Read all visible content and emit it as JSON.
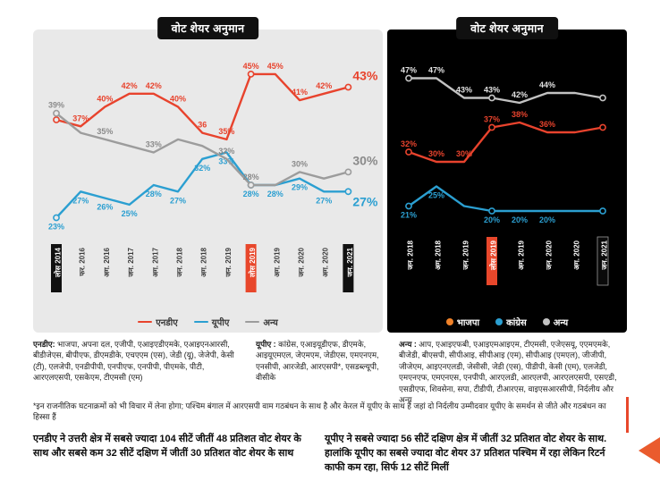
{
  "left_chart": {
    "title": "वोट शेयर अनुमान"
  },
  "right_chart": {
    "title": "वोट शेयर अनुमान"
  },
  "colors": {
    "nda_red": "#e8432d",
    "upa_blue": "#2b9fd1",
    "others_gray_light_panel": "#9c9c9c",
    "others_gray_dark_panel": "#c2c2c2",
    "bjp_legend_orange": "#f08229",
    "highlight_box_red": "#e8472b",
    "highlight_box_black": "#111111",
    "panel_left_bg": "#e9e9e9",
    "panel_right_bg": "#000000"
  },
  "chart_data": [
    {
      "type": "line",
      "title": "वोट शेयर अनुमान",
      "grid": false,
      "ylim": [
        18,
        50
      ],
      "unit": "%",
      "legend_position": "bottom",
      "categories": [
        "लोस 2014",
        "फर. 2016",
        "अग. 2016",
        "जन. 2017",
        "अग. 2017",
        "जन. 2018",
        "अग. 2018",
        "जन. 2019",
        "लोस 2019",
        "अग. 2019",
        "जन. 2020",
        "अग. 2020",
        "जन. 2021"
      ],
      "highlight_categories": {
        "boxed_black": [
          0,
          12
        ],
        "boxed_red": [
          8
        ]
      },
      "series": [
        {
          "name": "एनडीए",
          "color": "#e8432d",
          "values": [
            38,
            37,
            40,
            42,
            42,
            40,
            36,
            35,
            45,
            45,
            41,
            42,
            43
          ],
          "labels": [
            null,
            "37%",
            "40%",
            "42%",
            "42%",
            "40%",
            "36",
            "35%",
            "45%",
            "45%",
            "41%",
            "42%",
            "43%"
          ]
        },
        {
          "name": "यूपीए",
          "color": "#2b9fd1",
          "values": [
            23,
            27,
            26,
            25,
            28,
            27,
            32,
            33,
            28,
            28,
            29,
            27,
            27
          ],
          "labels": [
            "23%",
            "27%",
            "26%",
            "25%",
            "28%",
            "27%",
            "32%",
            "33%",
            "28%",
            "28%",
            "29%",
            "27%",
            "27%"
          ]
        },
        {
          "name": "अन्य",
          "color": "#9c9c9c",
          "label_color": "#8a8a8a",
          "values": [
            39,
            36,
            35,
            34,
            33,
            35,
            34,
            32,
            28,
            28,
            30,
            29,
            30
          ],
          "labels": [
            "39%",
            null,
            "35%",
            null,
            "33%",
            null,
            null,
            "32%",
            "28%",
            null,
            "30%",
            null,
            "30%"
          ]
        }
      ]
    },
    {
      "type": "line",
      "title": "वोट शेयर अनुमान",
      "grid": false,
      "ylim": [
        16,
        52
      ],
      "unit": "%",
      "legend_position": "bottom",
      "categories": [
        "जन. 2018",
        "अग. 2018",
        "जन. 2019",
        "लोस 2019",
        "अग. 2019",
        "जन. 2020",
        "अग. 2020",
        "जन. 2021"
      ],
      "highlight_categories": {
        "boxed_red": [
          3
        ],
        "boxed_black": [
          7
        ]
      },
      "series": [
        {
          "name": "भाजपा",
          "color": "#e8432d",
          "legend_color": "#f08229",
          "values": [
            32,
            30,
            30,
            37,
            38,
            36,
            36,
            37
          ],
          "labels": [
            "32%",
            "30%",
            "30%",
            "37%",
            "38%",
            "36%",
            null,
            null
          ]
        },
        {
          "name": "कांग्रेस",
          "color": "#2b9fd1",
          "values": [
            21,
            25,
            21,
            20,
            20,
            20,
            20,
            20
          ],
          "labels": [
            "21%",
            "25%",
            null,
            "20%",
            "20%",
            "20%",
            null,
            null
          ]
        },
        {
          "name": "अन्य",
          "color": "#c2c2c2",
          "label_color": "#e2e2e2",
          "values": [
            47,
            47,
            43,
            43,
            42,
            44,
            44,
            43
          ],
          "labels": [
            "47%",
            "47%",
            "43%",
            "43%",
            "42%",
            "44%",
            null,
            null
          ]
        }
      ]
    }
  ],
  "parties": {
    "nda": {
      "label": "एनडीए:",
      "list": "भाजपा, अपना दल, एजीपी, एआइएडीएमके, एआइएनआरसी, बीडीजेएस, बीपीएफ, डीएमडीके, एचएएम (एस), जेडी (यू), जेजेपी, केसी (टी), एलजेपी, एनडीपीपी, एनपीएफ, एनपीपी, पीएमके, पीटी, आरएलएसपी, एसकेएम, टीएमसी (एम)"
    },
    "upa": {
      "label": "यूपीए :",
      "list": "कांग्रेस, एआइयूडीएफ, डीएमके, आइयूएमएल, जेएमएम, जेडीएस, एमएनएम, एनसीपी, आरजेडी, आरएसपी*, एसडब्ल्यूपी, वीसीके"
    },
    "others": {
      "label": "अन्य :",
      "list": "आप, एआइएफबी, एआइएमआइएम, टीएमसी, एजेएसयू, एएमएमके, बीजेडी, बीएसपी, सीपीआइ, सीपीआइ (एम), सीपीआइ (एमएल), जीजीपी, जीजेएम, आइएनएलडी, जेसीसी, जेडी (एस), पीडीपी, केसी (एम), एलजेडी, एमएनएफ, एमएनएस, एनपीपी, आरएलडी, आरएलपी, आरएलएसपी, एसएडी, एसडीएफ, शिवसेना, सपा, टीडीपी, टीआरएस, वाइएसआरसीपी, निर्दलीय और अन्य"
    }
  },
  "footnote": "*इन राजनीतिक घटनाक्रमों को भी विचार में लेना होगा; पश्चिम बंगाल में आरएसपी वाम गठबंधन के साथ है और केरल में यूपीए के साथ है जहां दो निर्दलीय उम्मीदवार यूपीए के समर्थन से जीते और गठबंधन का हिस्सा हैं",
  "notes": {
    "left": "एनडीए ने उत्तरी क्षेत्र में सबसे ज्यादा 104 सीटें जीतीं 48 प्रतिशत वोट शेयर के साथ और सबसे कम 32 सीटें दक्षिण में जीतीं 30 प्रतिशत वोट शेयर के साथ",
    "right": "यूपीए ने सबसे ज्यादा 56 सीटें दक्षिण क्षेत्र में जीतीं 32 प्रतिशत वोट शेयर के साथ. हालांकि यूपीए का सबसे ज्यादा वोट शेयर 37 प्रतिशत पश्चिम में रहा लेकिन रिटर्न काफी कम रहा, सिर्फ 12 सीटें मिलीं"
  }
}
